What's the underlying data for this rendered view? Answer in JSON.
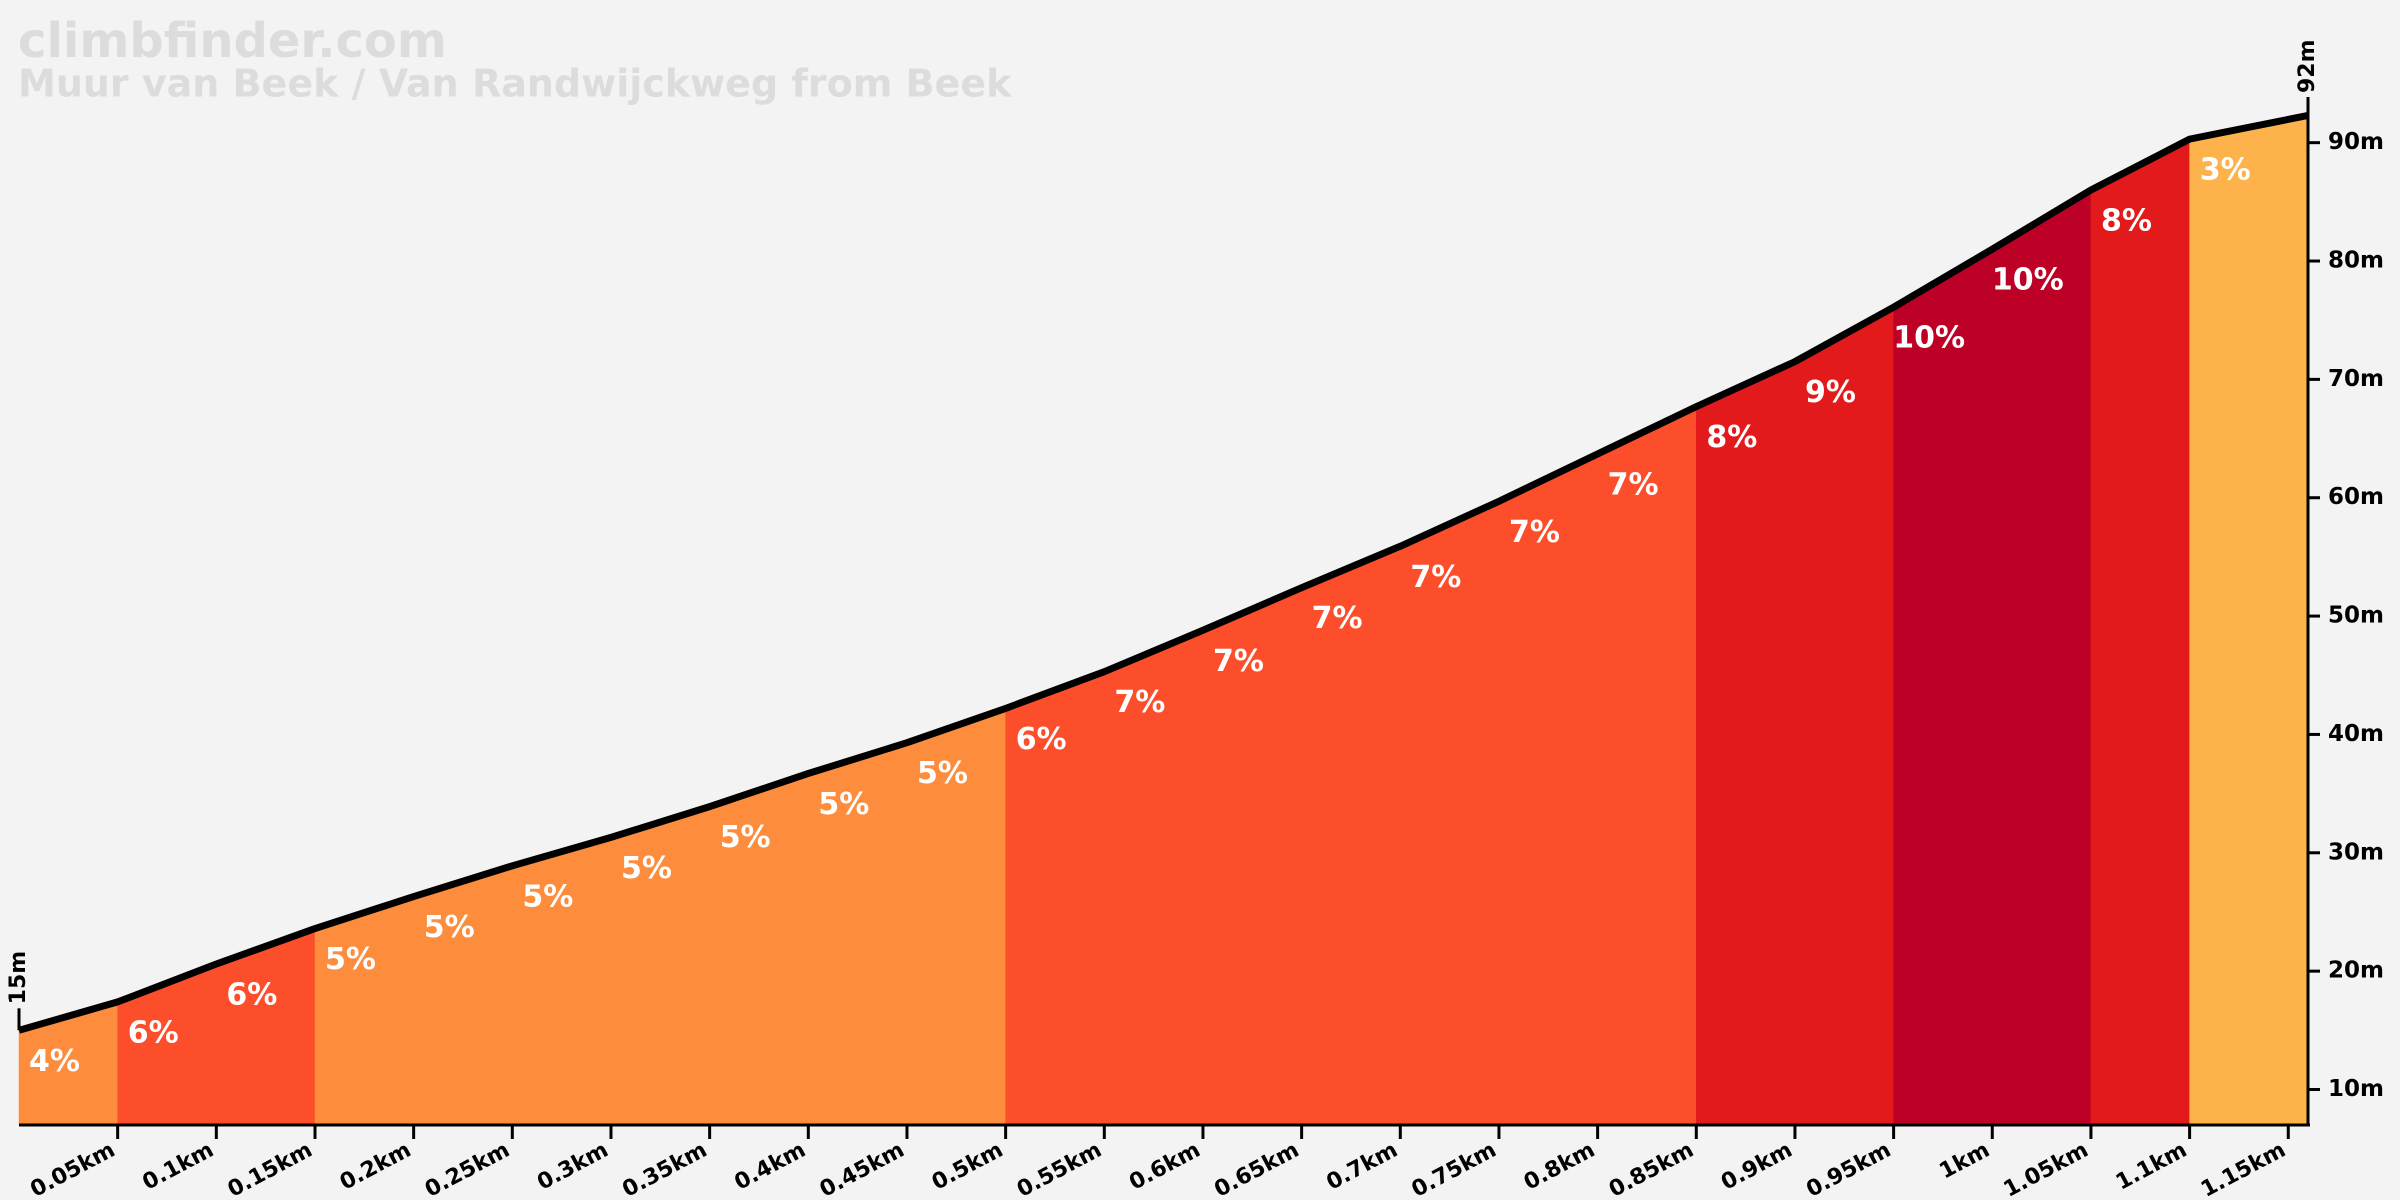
{
  "chart_data": {
    "type": "climb-profile",
    "title": "climbfinder.com",
    "subtitle": "Muur van Beek / Van Randwijckweg from Beek",
    "x": [
      0,
      0.05,
      0.1,
      0.15,
      0.2,
      0.25,
      0.3,
      0.35,
      0.4,
      0.45,
      0.5,
      0.55,
      0.6,
      0.65,
      0.7,
      0.75,
      0.8,
      0.85,
      0.9,
      0.95,
      1.0,
      1.05,
      1.1,
      1.16
    ],
    "values": [
      15,
      17.4,
      20.6,
      23.6,
      26.3,
      28.9,
      31.3,
      33.9,
      36.7,
      39.3,
      42.2,
      45.3,
      48.8,
      52.4,
      55.9,
      59.7,
      63.7,
      67.7,
      71.5,
      76.1,
      81.0,
      86.0,
      90.3,
      92.3
    ],
    "gradients": {
      "values": [
        4,
        6,
        6,
        5,
        5,
        5,
        5,
        5,
        5,
        5,
        6,
        7,
        7,
        7,
        7,
        7,
        7,
        8,
        9,
        10,
        10,
        8,
        3
      ],
      "value_labels": [
        "4%",
        "6%",
        "6%",
        "5%",
        "5%",
        "5%",
        "5%",
        "5%",
        "5%",
        "5%",
        "6%",
        "7%",
        "7%",
        "7%",
        "7%",
        "7%",
        "7%",
        "8%",
        "9%",
        "10%",
        "10%",
        "8%",
        "3%"
      ],
      "colors": [
        "#fd8d3c",
        "#fc4e2a",
        "#fc4e2a",
        "#fd8d3c",
        "#fd8d3c",
        "#fd8d3c",
        "#fd8d3c",
        "#fd8d3c",
        "#fd8d3c",
        "#fd8d3c",
        "#fc4e2a",
        "#fc4e2a",
        "#fc4e2a",
        "#fc4e2a",
        "#fc4e2a",
        "#fc4e2a",
        "#fc4e2a",
        "#e31a1c",
        "#e31a1c",
        "#bd0026",
        "#bd0026",
        "#e31a1c",
        "#feb24c"
      ]
    },
    "start_label": {
      "value": 15,
      "label": "15m"
    },
    "end_label": {
      "value": 92,
      "label": "92m"
    },
    "xlim": [
      0,
      1.16
    ],
    "ylim": [
      7,
      92
    ],
    "xticks": [
      {
        "value": 0.05,
        "label": "0.05km"
      },
      {
        "value": 0.1,
        "label": "0.1km"
      },
      {
        "value": 0.15,
        "label": "0.15km"
      },
      {
        "value": 0.2,
        "label": "0.2km"
      },
      {
        "value": 0.25,
        "label": "0.25km"
      },
      {
        "value": 0.3,
        "label": "0.3km"
      },
      {
        "value": 0.35,
        "label": "0.35km"
      },
      {
        "value": 0.4,
        "label": "0.4km"
      },
      {
        "value": 0.45,
        "label": "0.45km"
      },
      {
        "value": 0.5,
        "label": "0.5km"
      },
      {
        "value": 0.55,
        "label": "0.55km"
      },
      {
        "value": 0.6,
        "label": "0.6km"
      },
      {
        "value": 0.65,
        "label": "0.65km"
      },
      {
        "value": 0.7,
        "label": "0.7km"
      },
      {
        "value": 0.75,
        "label": "0.75km"
      },
      {
        "value": 0.8,
        "label": "0.8km"
      },
      {
        "value": 0.85,
        "label": "0.85km"
      },
      {
        "value": 0.9,
        "label": "0.9km"
      },
      {
        "value": 0.95,
        "label": "0.95km"
      },
      {
        "value": 1.0,
        "label": "1km"
      },
      {
        "value": 1.05,
        "label": "1.05km"
      },
      {
        "value": 1.1,
        "label": "1.1km"
      },
      {
        "value": 1.15,
        "label": "1.15km"
      }
    ],
    "yticks": [
      {
        "value": 10,
        "label": "10m"
      },
      {
        "value": 20,
        "label": "20m"
      },
      {
        "value": 30,
        "label": "30m"
      },
      {
        "value": 40,
        "label": "40m"
      },
      {
        "value": 50,
        "label": "50m"
      },
      {
        "value": 60,
        "label": "60m"
      },
      {
        "value": 70,
        "label": "70m"
      },
      {
        "value": 80,
        "label": "80m"
      },
      {
        "value": 90,
        "label": "90m"
      }
    ]
  }
}
